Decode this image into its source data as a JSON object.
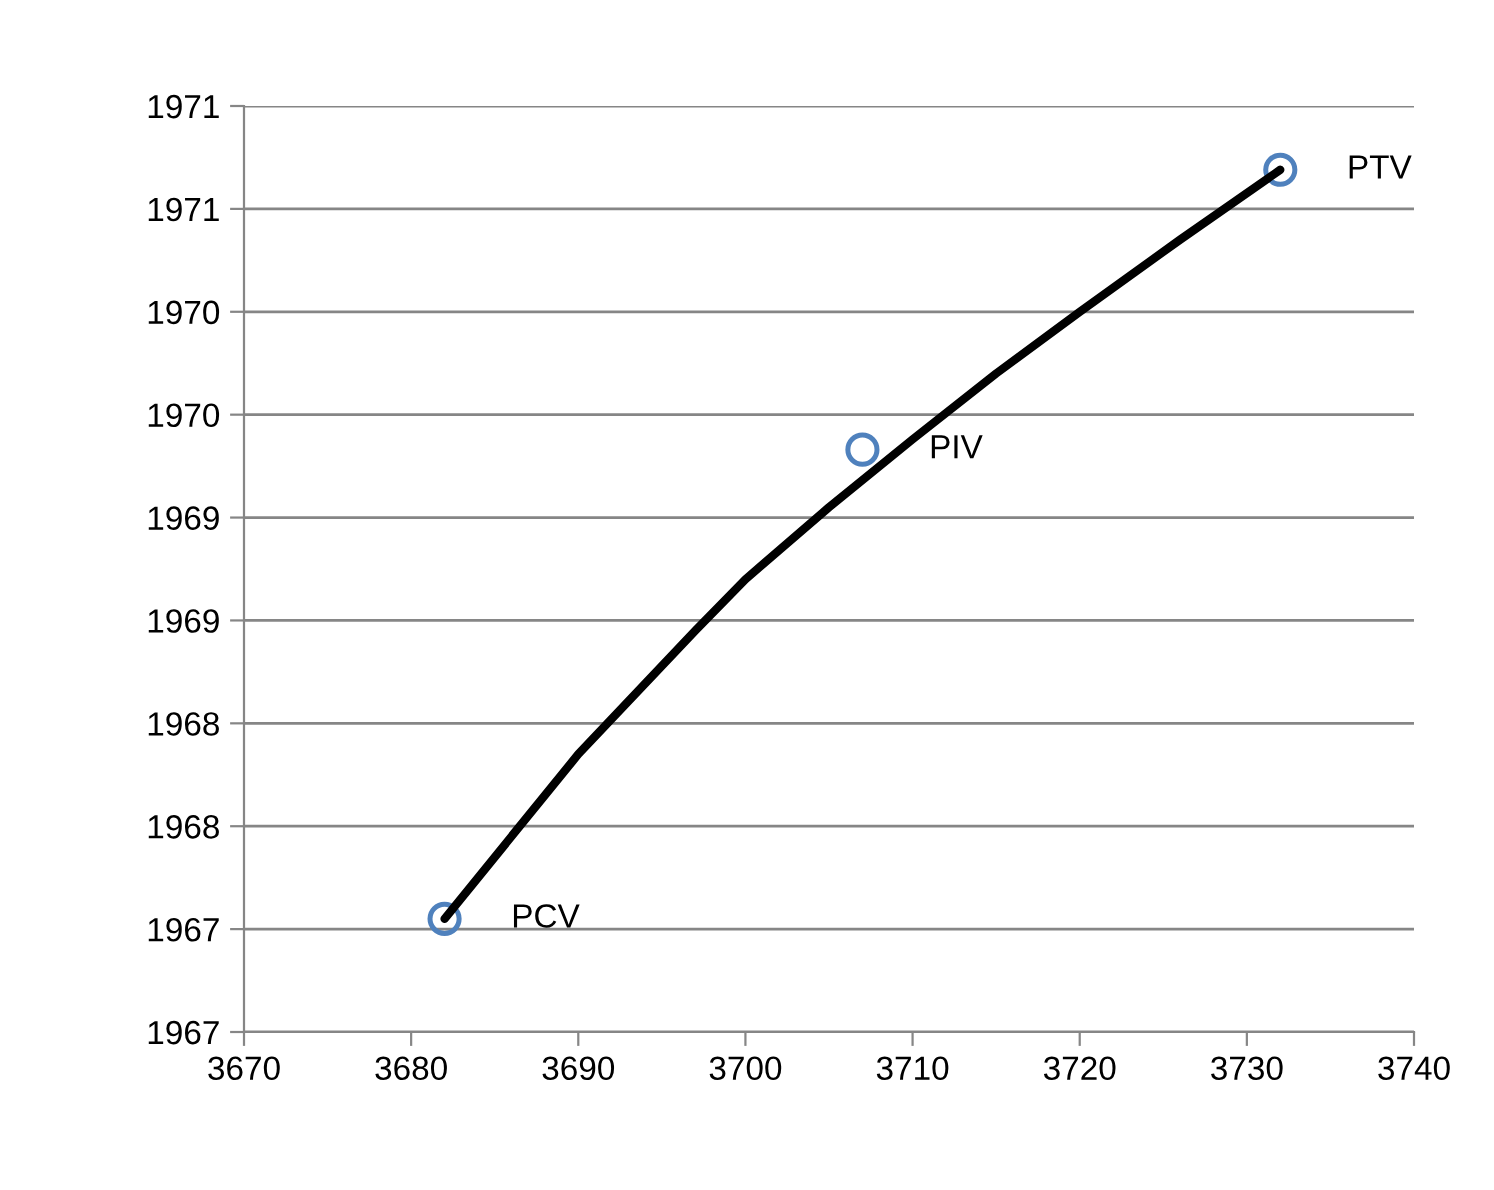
{
  "chart_data": {
    "type": "scatter",
    "series": [
      {
        "color": "#4f81bd",
        "marker": "circle",
        "x": [
          3682,
          3707,
          3732
        ],
        "values": [
          1967.05,
          1969.33,
          1970.69
        ]
      },
      {
        "type": "line",
        "color": "#000000",
        "marker": "none",
        "line_style": "solid",
        "x": [
          3682,
          3690,
          3697,
          3700,
          3705,
          3710,
          3715,
          3720,
          3726,
          3732
        ],
        "values": [
          1967.05,
          1967.85,
          1968.45,
          1968.7,
          1969.05,
          1969.38,
          1969.7,
          1970.0,
          1970.35,
          1970.69
        ]
      }
    ],
    "annotations": [
      {
        "text": "PCV",
        "x": 3682,
        "y": 1967.05
      },
      {
        "text": "PIV",
        "x": 3707,
        "y": 1969.33
      },
      {
        "text": "PTV",
        "x": 3732,
        "y": 1970.69
      }
    ],
    "xlim": [
      3670,
      3740
    ],
    "xticks": [
      3670,
      3680,
      3690,
      3700,
      3710,
      3720,
      3730,
      3740
    ],
    "ylim": [
      1966.5,
      1971
    ],
    "yticks": [
      {
        "value": 1966.5,
        "label": "1967"
      },
      {
        "value": 1967,
        "label": "1967"
      },
      {
        "value": 1967.5,
        "label": "1968"
      },
      {
        "value": 1968,
        "label": "1968"
      },
      {
        "value": 1968.5,
        "label": "1969"
      },
      {
        "value": 1969,
        "label": "1969"
      },
      {
        "value": 1969.5,
        "label": "1970"
      },
      {
        "value": 1970,
        "label": "1970"
      },
      {
        "value": 1970.5,
        "label": "1971"
      },
      {
        "value": 1971,
        "label": "1971"
      }
    ],
    "grid": "y",
    "legend": false
  }
}
